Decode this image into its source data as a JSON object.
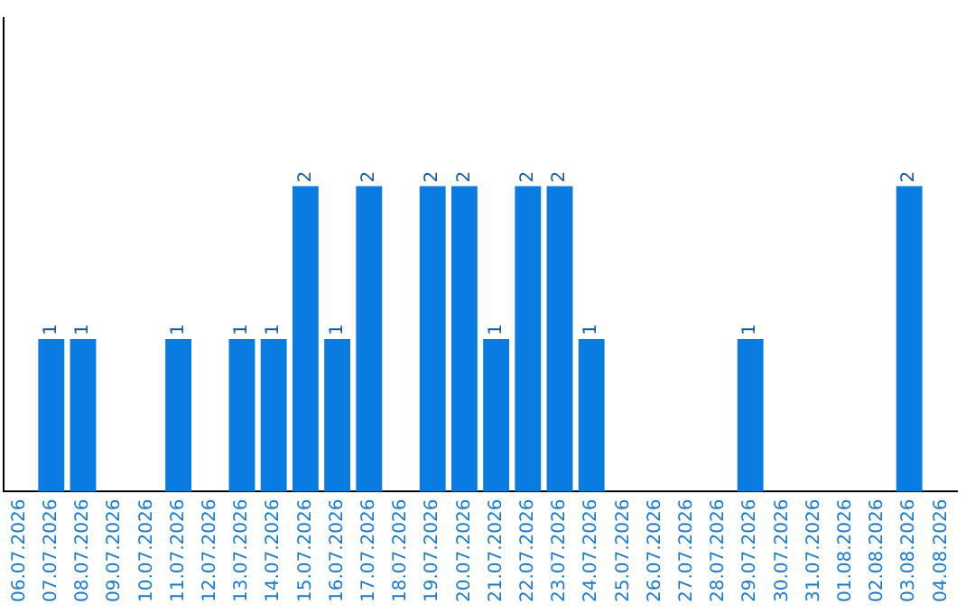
{
  "chart_data": {
    "type": "bar",
    "categories": [
      "06.07.2026",
      "07.07.2026",
      "08.07.2026",
      "09.07.2026",
      "10.07.2026",
      "11.07.2026",
      "12.07.2026",
      "13.07.2026",
      "14.07.2026",
      "15.07.2026",
      "16.07.2026",
      "17.07.2026",
      "18.07.2026",
      "19.07.2026",
      "20.07.2026",
      "21.07.2026",
      "22.07.2026",
      "23.07.2026",
      "24.07.2026",
      "25.07.2026",
      "26.07.2026",
      "27.07.2026",
      "28.07.2026",
      "29.07.2026",
      "30.07.2026",
      "31.07.2026",
      "01.08.2026",
      "02.08.2026",
      "03.08.2026",
      "04.08.2026"
    ],
    "values": [
      null,
      1,
      1,
      null,
      null,
      1,
      null,
      1,
      1,
      2,
      1,
      2,
      null,
      2,
      2,
      1,
      2,
      2,
      1,
      null,
      null,
      null,
      null,
      1,
      null,
      null,
      null,
      null,
      2,
      null
    ],
    "color": "#0a7be0",
    "ylim": [
      0,
      3.1
    ],
    "tick_labels": "x",
    "data_labels": true,
    "grid": false,
    "legend": false
  }
}
